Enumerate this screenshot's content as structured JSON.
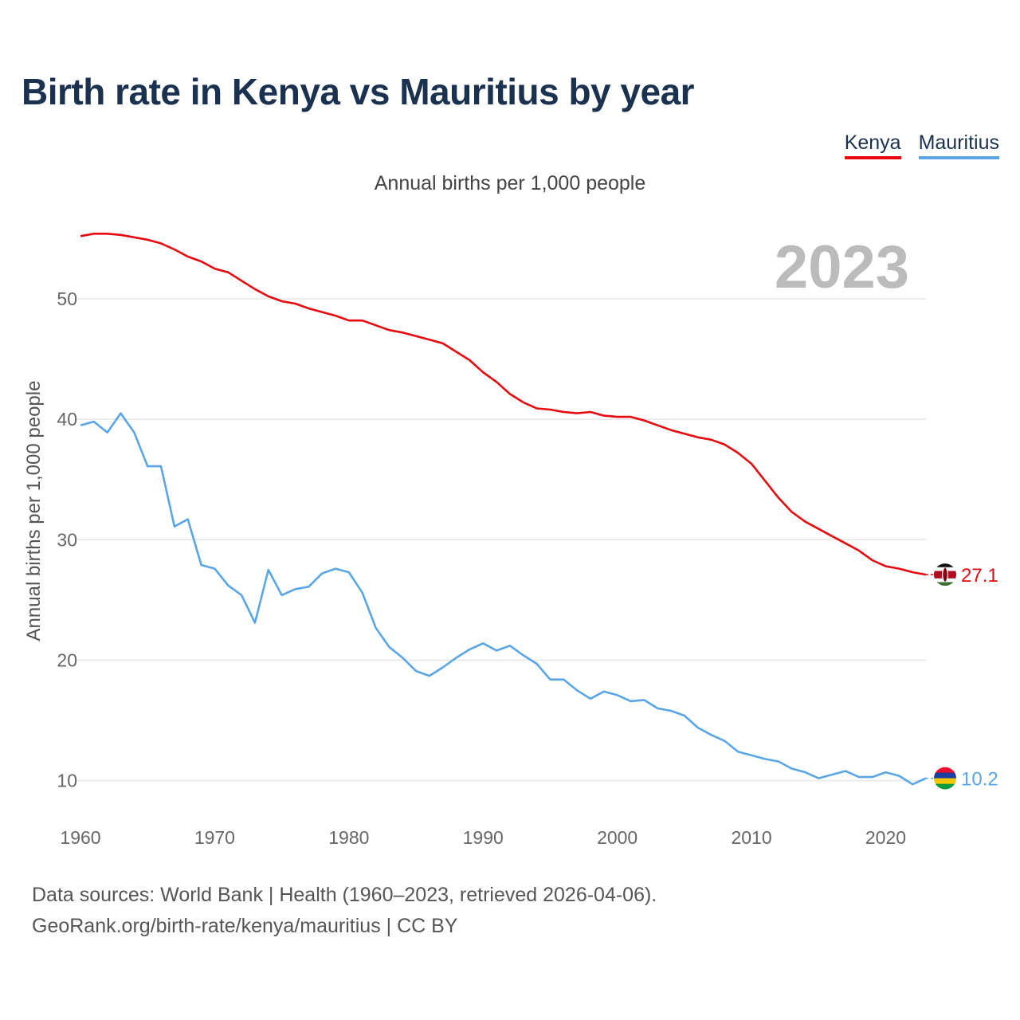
{
  "title": "Birth rate in Kenya vs Mauritius by year",
  "legend": [
    {
      "label": "Kenya",
      "color": "#e8080e"
    },
    {
      "label": "Mauritius",
      "color": "#5aa5e6"
    }
  ],
  "subtitle": "Annual births per 1,000 people",
  "footer": {
    "line1": "Data sources: World Bank | Health (1960–2023, retrieved 2026-04-06).",
    "line2": "GeoRank.org/birth-rate/kenya/mauritius | CC BY"
  },
  "chart_data": {
    "type": "line",
    "title": "Birth rate in Kenya vs Mauritius by year",
    "ylabel": "Annual births per 1,000 people",
    "xlabel": "",
    "year_display": "2023",
    "x": [
      1960,
      1961,
      1962,
      1963,
      1964,
      1965,
      1966,
      1967,
      1968,
      1969,
      1970,
      1971,
      1972,
      1973,
      1974,
      1975,
      1976,
      1977,
      1978,
      1979,
      1980,
      1981,
      1982,
      1983,
      1984,
      1985,
      1986,
      1987,
      1988,
      1989,
      1990,
      1991,
      1992,
      1993,
      1994,
      1995,
      1996,
      1997,
      1998,
      1999,
      2000,
      2001,
      2002,
      2003,
      2004,
      2005,
      2006,
      2007,
      2008,
      2009,
      2010,
      2011,
      2012,
      2013,
      2014,
      2015,
      2016,
      2017,
      2018,
      2019,
      2020,
      2021,
      2022,
      2023
    ],
    "xlim": [
      1960,
      2023
    ],
    "ylim": [
      7,
      58
    ],
    "x_ticks": [
      1960,
      1970,
      1980,
      1990,
      2000,
      2010,
      2020
    ],
    "y_ticks": [
      10,
      20,
      30,
      40,
      50
    ],
    "grid": true,
    "series": [
      {
        "name": "Kenya",
        "color": "#e8080e",
        "end_label": "27.1",
        "values": [
          55.2,
          55.4,
          55.4,
          55.3,
          55.1,
          54.9,
          54.6,
          54.1,
          53.5,
          53.1,
          52.5,
          52.2,
          51.5,
          50.8,
          50.2,
          49.8,
          49.6,
          49.2,
          48.9,
          48.6,
          48.2,
          48.2,
          47.8,
          47.4,
          47.2,
          46.9,
          46.6,
          46.3,
          45.6,
          44.9,
          43.9,
          43.1,
          42.1,
          41.4,
          40.9,
          40.8,
          40.6,
          40.5,
          40.6,
          40.3,
          40.2,
          40.2,
          39.9,
          39.5,
          39.1,
          38.8,
          38.5,
          38.3,
          37.9,
          37.2,
          36.3,
          34.9,
          33.5,
          32.3,
          31.5,
          30.9,
          30.3,
          29.7,
          29.1,
          28.3,
          27.8,
          27.6,
          27.3,
          27.1
        ]
      },
      {
        "name": "Mauritius",
        "color": "#5aa5e6",
        "end_label": "10.2",
        "values": [
          39.5,
          39.8,
          38.9,
          40.5,
          38.9,
          36.1,
          36.1,
          31.1,
          31.7,
          27.9,
          27.6,
          26.2,
          25.4,
          23.1,
          27.5,
          25.4,
          25.9,
          26.1,
          27.2,
          27.6,
          27.3,
          25.6,
          22.7,
          21.1,
          20.2,
          19.1,
          18.7,
          19.4,
          20.2,
          20.9,
          21.4,
          20.8,
          21.2,
          20.4,
          19.7,
          18.4,
          18.4,
          17.5,
          16.8,
          17.4,
          17.1,
          16.6,
          16.7,
          16.0,
          15.8,
          15.4,
          14.4,
          13.8,
          13.3,
          12.4,
          12.1,
          11.8,
          11.6,
          11.0,
          10.7,
          10.2,
          10.5,
          10.8,
          10.3,
          10.3,
          10.7,
          10.4,
          9.7,
          10.2
        ]
      }
    ]
  }
}
